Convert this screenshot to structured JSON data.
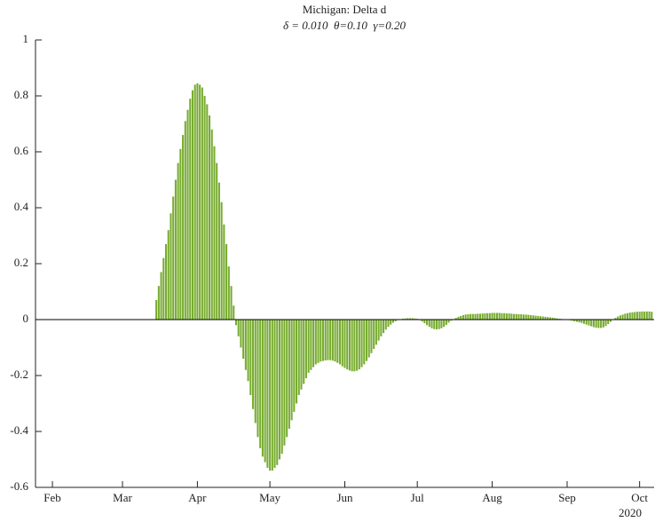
{
  "chart_data": {
    "type": "bar",
    "title": "Michigan: Delta d",
    "subtitle": "δ = 0.010  θ=0.10  γ=0.20",
    "x_year_label": "2020",
    "color": "#77ac30",
    "x": [
      75,
      76,
      77,
      78,
      79,
      80,
      81,
      82,
      83,
      84,
      85,
      86,
      87,
      88,
      89,
      90,
      91,
      92,
      93,
      94,
      95,
      96,
      97,
      98,
      99,
      100,
      101,
      102,
      103,
      104,
      105,
      106,
      107,
      108,
      109,
      110,
      111,
      112,
      113,
      114,
      115,
      116,
      117,
      118,
      119,
      120,
      121,
      122,
      123,
      124,
      125,
      126,
      127,
      128,
      129,
      130,
      131,
      132,
      133,
      134,
      135,
      136,
      137,
      138,
      139,
      140,
      141,
      142,
      143,
      144,
      145,
      146,
      147,
      148,
      149,
      150,
      151,
      152,
      153,
      154,
      155,
      156,
      157,
      158,
      159,
      160,
      161,
      162,
      163,
      164,
      165,
      166,
      167,
      168,
      169,
      170,
      171,
      172,
      173,
      174,
      175,
      176,
      177,
      178,
      179,
      180,
      181,
      182,
      183,
      184,
      185,
      186,
      187,
      188,
      189,
      190,
      191,
      192,
      193,
      194,
      195,
      196,
      197,
      198,
      199,
      200,
      201,
      202,
      203,
      204,
      205,
      206,
      207,
      208,
      209,
      210,
      211,
      212,
      213,
      214,
      215,
      216,
      217,
      218,
      219,
      220,
      221,
      222,
      223,
      224,
      225,
      226,
      227,
      228,
      229,
      230,
      231,
      232,
      233,
      234,
      235,
      236,
      237,
      238,
      239,
      240,
      241,
      242,
      243,
      244,
      245,
      246,
      247,
      248,
      249,
      250,
      251,
      252,
      253,
      254,
      255,
      256,
      257,
      258,
      259,
      260,
      261,
      262,
      263,
      264,
      265,
      266,
      267,
      268,
      269,
      270,
      271,
      272,
      273,
      274,
      275,
      276,
      277,
      278,
      279,
      280
    ],
    "values": [
      0.07,
      0.12,
      0.17,
      0.22,
      0.27,
      0.32,
      0.38,
      0.44,
      0.5,
      0.56,
      0.61,
      0.66,
      0.71,
      0.75,
      0.79,
      0.82,
      0.84,
      0.845,
      0.84,
      0.83,
      0.8,
      0.77,
      0.73,
      0.68,
      0.62,
      0.56,
      0.49,
      0.42,
      0.34,
      0.27,
      0.19,
      0.12,
      0.05,
      -0.02,
      -0.06,
      -0.1,
      -0.14,
      -0.18,
      -0.22,
      -0.27,
      -0.32,
      -0.37,
      -0.42,
      -0.46,
      -0.49,
      -0.51,
      -0.53,
      -0.54,
      -0.54,
      -0.53,
      -0.52,
      -0.5,
      -0.48,
      -0.45,
      -0.42,
      -0.39,
      -0.36,
      -0.33,
      -0.3,
      -0.27,
      -0.25,
      -0.23,
      -0.21,
      -0.19,
      -0.18,
      -0.17,
      -0.16,
      -0.155,
      -0.15,
      -0.148,
      -0.146,
      -0.145,
      -0.145,
      -0.147,
      -0.15,
      -0.155,
      -0.16,
      -0.167,
      -0.173,
      -0.178,
      -0.182,
      -0.185,
      -0.185,
      -0.183,
      -0.178,
      -0.17,
      -0.16,
      -0.148,
      -0.135,
      -0.12,
      -0.105,
      -0.09,
      -0.075,
      -0.06,
      -0.048,
      -0.036,
      -0.026,
      -0.018,
      -0.011,
      -0.006,
      -0.002,
      0.001,
      0.003,
      0.004,
      0.005,
      0.005,
      0.005,
      0.004,
      0.003,
      -0.002,
      -0.007,
      -0.013,
      -0.02,
      -0.026,
      -0.031,
      -0.034,
      -0.035,
      -0.034,
      -0.031,
      -0.026,
      -0.019,
      -0.011,
      -0.004,
      0.002,
      0.006,
      0.01,
      0.013,
      0.016,
      0.018,
      0.019,
      0.02,
      0.02,
      0.02,
      0.021,
      0.021,
      0.022,
      0.022,
      0.023,
      0.023,
      0.024,
      0.024,
      0.024,
      0.024,
      0.023,
      0.023,
      0.022,
      0.022,
      0.021,
      0.02,
      0.02,
      0.019,
      0.019,
      0.018,
      0.018,
      0.017,
      0.016,
      0.015,
      0.014,
      0.013,
      0.012,
      0.011,
      0.01,
      0.009,
      0.008,
      0.007,
      0.006,
      0.004,
      0.003,
      0.002,
      0.001,
      0,
      -0.002,
      -0.004,
      -0.006,
      -0.008,
      -0.01,
      -0.012,
      -0.015,
      -0.018,
      -0.021,
      -0.024,
      -0.027,
      -0.029,
      -0.03,
      -0.03,
      -0.028,
      -0.023,
      -0.016,
      -0.008,
      0,
      0.006,
      0.011,
      0.015,
      0.018,
      0.021,
      0.023,
      0.025,
      0.026,
      0.027,
      0.028,
      0.028,
      0.029,
      0.029,
      0.029,
      0.029,
      0.028
    ],
    "xlim": [
      25,
      281
    ],
    "xticks": [
      {
        "value": 32,
        "label": "Feb"
      },
      {
        "value": 61,
        "label": "Mar"
      },
      {
        "value": 92,
        "label": "Apr"
      },
      {
        "value": 122,
        "label": "May"
      },
      {
        "value": 153,
        "label": "Jun"
      },
      {
        "value": 183,
        "label": "Jul"
      },
      {
        "value": 214,
        "label": "Aug"
      },
      {
        "value": 245,
        "label": "Sep"
      },
      {
        "value": 275,
        "label": "Oct"
      }
    ],
    "ylim": [
      -0.6,
      1
    ],
    "yticks": [
      -0.6,
      -0.4,
      -0.2,
      0,
      0.2,
      0.4,
      0.6,
      0.8,
      1
    ],
    "grid": false
  }
}
